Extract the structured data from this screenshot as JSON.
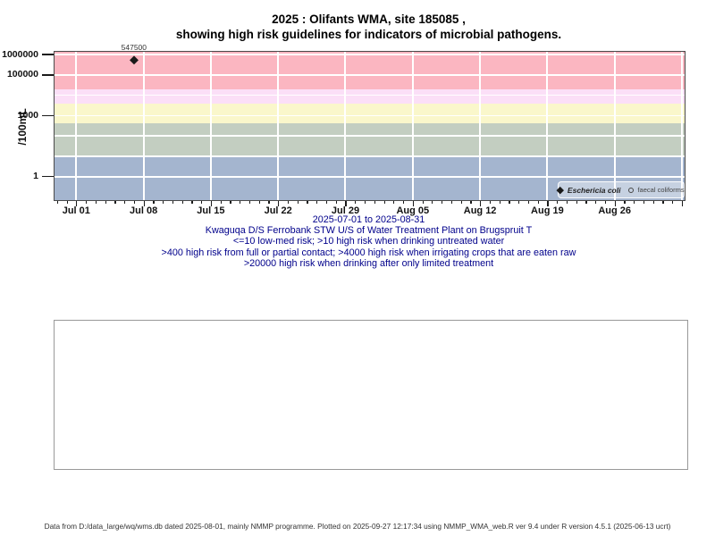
{
  "title": {
    "line1": "2025 : Olifants WMA, site 185085 ,",
    "line2": "showing high risk guidelines for indicators of microbial pathogens."
  },
  "y_axis_label": "/100mL",
  "subtitles": {
    "site": "Kwaguqa D/S Ferrobank STW U/S of Water Treatment Plant on Brugspruit T",
    "risk1": "<=10 low-med risk; >10 high risk when drinking untreated water",
    "risk2": ">400 high risk from full or partial contact; >4000 high risk when irrigating crops that are eaten raw",
    "risk3": ">20000 high risk when drinking after only limited treatment"
  },
  "footer": "Data from D:/data_large/wq/wms.db dated 2025-08-01, mainly NMMP programme. Plotted on 2025-09-27 12:17:34 using NMMP_WMA_web.R ver 9.4 under R version 4.5.1 (2025-06-13 ucrt)",
  "chart_data": {
    "type": "scatter",
    "title": "2025 : Olifants WMA, site 185085 , showing high risk guidelines for indicators of microbial pathogens.",
    "xlabel": "2025-07-01 to 2025-08-31",
    "ylabel": "/100mL",
    "y_scale": "log10",
    "grid": true,
    "legend_position": "bottom-right",
    "x_range": {
      "start": "2025-07-01",
      "end": "2025-08-31"
    },
    "x_ticks": [
      "Jul 01",
      "Jul 08",
      "Jul 15",
      "Jul 22",
      "Jul 29",
      "Aug 05",
      "Aug 12",
      "Aug 19",
      "Aug 26"
    ],
    "y_ticks": [
      {
        "value": 1,
        "label": "1"
      },
      {
        "value": 1000,
        "label": "1000"
      },
      {
        "value": 100000,
        "label": "100000"
      },
      {
        "value": 1000000,
        "label": "1000000"
      }
    ],
    "series": [
      {
        "name": "Eschericia coli",
        "marker": "filled-diamond",
        "points": [
          {
            "x": "2025-07-07",
            "y": 547500,
            "label": "547500"
          }
        ]
      },
      {
        "name": "faecal coliforms",
        "marker": "open-circle",
        "points": []
      }
    ],
    "risk_bands": [
      {
        "label": ">20000 high risk when drinking after only limited treatment",
        "min": 20000,
        "max": null,
        "color": "#FBB6C1"
      },
      {
        "label": ">4000 high risk when irrigating crops that are eaten raw",
        "min": 4000,
        "max": 20000,
        "color": "#FBDFF7"
      },
      {
        "label": ">400 high risk from full or partial contact",
        "min": 400,
        "max": 4000,
        "color": "#FAF7CB"
      },
      {
        "label": ">10 high risk when drinking untreated water",
        "min": 10,
        "max": 400,
        "color": "#C3CEC1"
      },
      {
        "label": "<=10 low-med risk",
        "min": null,
        "max": 10,
        "color": "#A4B5CF"
      }
    ]
  }
}
